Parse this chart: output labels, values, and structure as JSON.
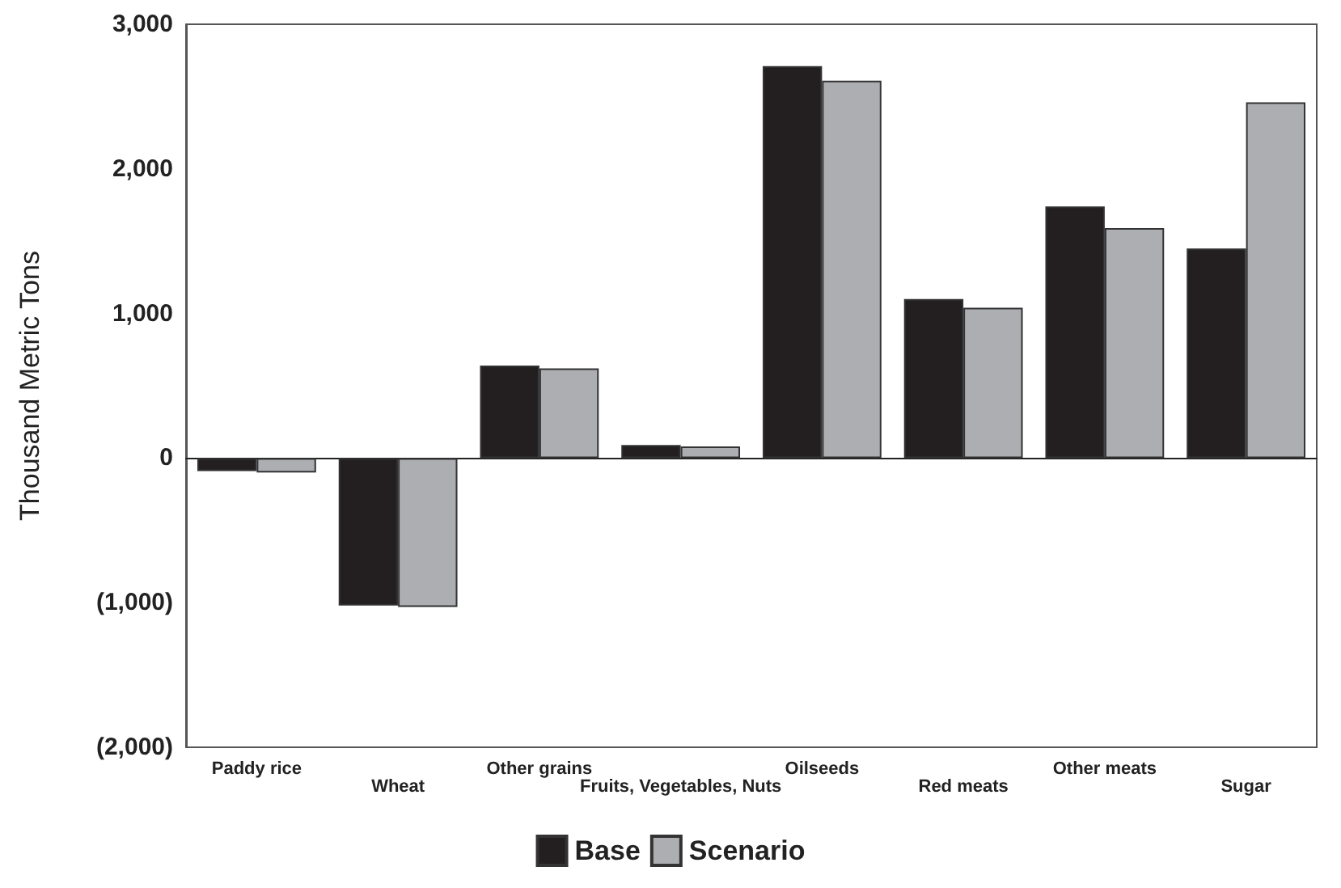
{
  "chart_data": {
    "type": "bar",
    "ylabel": "Thousand Metric Tons",
    "categories": [
      "Paddy rice",
      "Wheat",
      "Other grains",
      "Fruits, Vegetables, Nuts",
      "Oilseeds",
      "Red meats",
      "Other meats",
      "Sugar"
    ],
    "series": [
      {
        "name": "Base",
        "color": "#231f20",
        "values": [
          -90,
          -1020,
          640,
          90,
          2710,
          1100,
          1740,
          1450
        ]
      },
      {
        "name": "Scenario",
        "color": "#adaeb1",
        "values": [
          -100,
          -1030,
          620,
          80,
          2610,
          1040,
          1590,
          2460
        ]
      }
    ],
    "ylim": [
      -2000,
      3000
    ],
    "yticks": [
      {
        "value": -2000,
        "label": "(2,000)"
      },
      {
        "value": -1000,
        "label": "(1,000)"
      },
      {
        "value": 0,
        "label": "0"
      },
      {
        "value": 1000,
        "label": "1,000"
      },
      {
        "value": 2000,
        "label": "2,000"
      },
      {
        "value": 3000,
        "label": "3,000"
      }
    ],
    "legend": "bottom"
  }
}
